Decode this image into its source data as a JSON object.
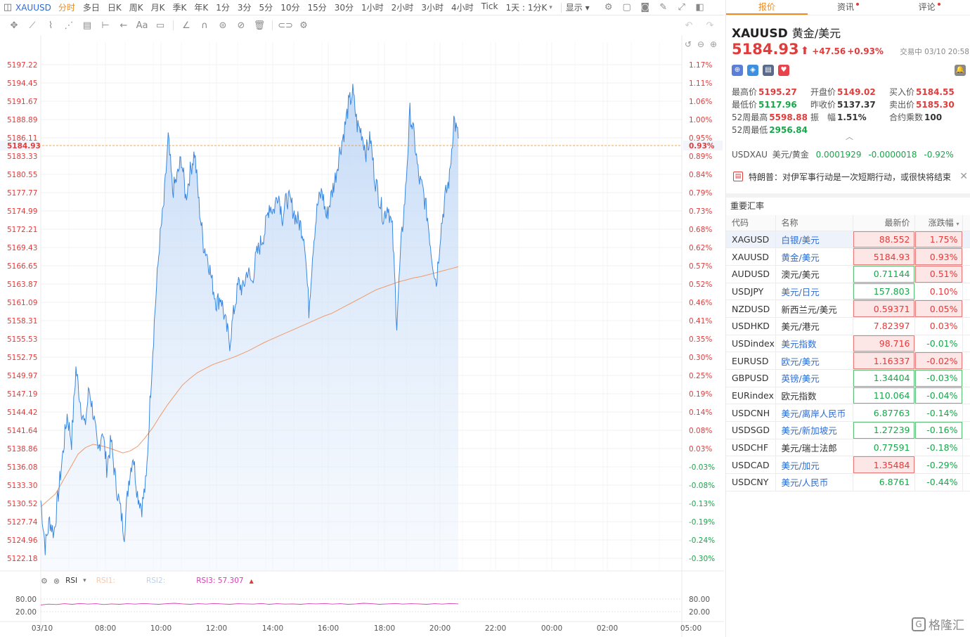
{
  "toolbar": {
    "symbol": "XAUUSD",
    "timeframes": [
      "分时",
      "多日",
      "日K",
      "周K",
      "月K",
      "季K",
      "年K",
      "1分",
      "3分",
      "5分",
      "10分",
      "15分",
      "30分",
      "1小时",
      "2小时",
      "3小时",
      "4小时",
      "Tick",
      "1天 : 1分K"
    ],
    "active_timeframe": "分时",
    "display_label": "显示"
  },
  "chart_data": {
    "type": "line",
    "title": "",
    "current_price_label": "5184.93",
    "current_pct_label": "0.93%",
    "y_tick_labels": [
      "5197.22",
      "5194.45",
      "5191.67",
      "5188.89",
      "5186.11",
      "5183.33",
      "5180.55",
      "5177.77",
      "5174.99",
      "5172.21",
      "5169.43",
      "5166.65",
      "5163.87",
      "5161.09",
      "5158.31",
      "5155.53",
      "5152.75",
      "5149.97",
      "5147.19",
      "5144.42",
      "5141.64",
      "5138.86",
      "5136.08",
      "5133.30",
      "5130.52",
      "5127.74",
      "5124.96",
      "5122.18"
    ],
    "pct_tick_labels": [
      "1.17%",
      "1.11%",
      "1.06%",
      "1.00%",
      "0.95%",
      "0.89%",
      "0.84%",
      "0.79%",
      "0.73%",
      "0.68%",
      "0.62%",
      "0.57%",
      "0.52%",
      "0.46%",
      "0.41%",
      "0.35%",
      "0.30%",
      "0.25%",
      "0.19%",
      "0.14%",
      "0.08%",
      "0.03%",
      "-0.03%",
      "-0.08%",
      "-0.13%",
      "-0.19%",
      "-0.24%",
      "-0.30%"
    ],
    "ylim": [
      5122.18,
      5197.22
    ],
    "x_tick_labels": [
      "03/10",
      "08:00",
      "10:00",
      "12:00",
      "14:00",
      "16:00",
      "18:00",
      "20:00",
      "22:00",
      "00:00",
      "02:00",
      "05:00"
    ],
    "series": [
      {
        "values": [
          5131,
          5124,
          5128,
          5126,
          5132,
          5138,
          5144,
          5140,
          5151,
          5146,
          5142,
          5148,
          5144,
          5138,
          5142,
          5136,
          5140,
          5134,
          5130,
          5126,
          5134,
          5138,
          5132,
          5130,
          5134,
          5148,
          5160,
          5170,
          5176,
          5186,
          5178,
          5180,
          5183,
          5177,
          5181,
          5184,
          5176,
          5170,
          5168,
          5164,
          5161,
          5162,
          5158,
          5155,
          5160,
          5164,
          5163,
          5166,
          5164,
          5168,
          5170,
          5172,
          5176,
          5175,
          5178,
          5174,
          5177,
          5176,
          5174,
          5173,
          5171,
          5160,
          5170,
          5176,
          5178,
          5174,
          5177,
          5180,
          5184,
          5187,
          5191,
          5193,
          5188,
          5187,
          5184,
          5186,
          5180,
          5177,
          5174,
          5176,
          5172,
          5158,
          5170,
          5178,
          5190,
          5186,
          5180,
          5178,
          5174,
          5168,
          5164,
          5172,
          5177,
          5180,
          5189,
          5186
        ],
        "color": "#3b88e0"
      },
      {
        "values": [
          5130,
          5131,
          5132,
          5134,
          5136,
          5138,
          5139,
          5139.5,
          5139.3,
          5139,
          5138.6,
          5138.2,
          5138.5,
          5139.2,
          5140.5,
          5142,
          5143.8,
          5145.5,
          5147,
          5148.5,
          5149.5,
          5150.4,
          5151,
          5151.6,
          5152,
          5152.4,
          5152.8,
          5153.3,
          5153.8,
          5154.4,
          5155,
          5155.5,
          5156,
          5156.5,
          5157,
          5157.5,
          5158,
          5158.5,
          5159,
          5159.4,
          5160,
          5160.6,
          5161.2,
          5161.8,
          5162.4,
          5163,
          5163.4,
          5163.8,
          5164.2,
          5164.5,
          5164.8,
          5165,
          5165.3,
          5165.6,
          5165.9,
          5166.2,
          5166.5
        ],
        "color": "#f09a6a"
      }
    ]
  },
  "rsi": {
    "label": "RSI",
    "rsi1": "RSI1:",
    "rsi2": "RSI2:",
    "rsi3": "RSI3: 57.307",
    "levels": [
      "80.00",
      "20.00"
    ],
    "values": [
      52,
      56,
      54,
      58,
      55,
      59,
      56,
      58,
      54,
      57,
      55,
      58,
      56,
      59,
      57,
      55,
      58,
      60,
      57,
      55,
      58,
      56,
      59,
      57,
      55,
      58,
      57,
      56,
      59,
      55,
      58,
      56,
      57,
      55,
      58,
      57,
      59,
      56,
      58,
      55,
      57,
      60,
      58,
      55,
      57,
      59,
      56,
      58,
      57,
      55,
      58,
      56,
      59,
      57
    ]
  },
  "panel": {
    "tabs": [
      {
        "label": "报价",
        "dot": false
      },
      {
        "label": "资讯",
        "dot": true
      },
      {
        "label": "评论",
        "dot": true
      }
    ],
    "symbol": "XAUUSD",
    "symbol_cn": "黄金/美元",
    "price": "5184.93",
    "change": "+47.56",
    "change_pct": "+0.93%",
    "status": "交易中 03/10 20:58",
    "stats": [
      [
        {
          "label": "最高价",
          "value": "5195.27",
          "color": "red"
        },
        {
          "label": "开盘价",
          "value": "5149.02",
          "color": "red"
        },
        {
          "label": "买入价",
          "value": "5184.55",
          "color": "red"
        }
      ],
      [
        {
          "label": "最低价",
          "value": "5117.96",
          "color": "green"
        },
        {
          "label": "昨收价",
          "value": "5137.37",
          "color": "dark"
        },
        {
          "label": "卖出价",
          "value": "5185.30",
          "color": "red"
        }
      ],
      [
        {
          "label": "52周最高",
          "value": "5598.88",
          "color": "red"
        },
        {
          "label": "振　幅",
          "value": "1.51%",
          "color": "dark"
        },
        {
          "label": "合约乘数",
          "value": "100",
          "color": "dark"
        }
      ],
      [
        {
          "label": "52周最低",
          "value": "2956.84",
          "color": "green"
        }
      ]
    ],
    "usdxau": {
      "code": "USDXAU",
      "name": "美元/黄金",
      "price": "0.0001929",
      "change": "-0.0000018",
      "pct": "-0.92%"
    },
    "news": "特朗普：对伊军事行动是一次短期行动，或很快将结束",
    "section_title": "重要汇率",
    "table_headers": [
      "代码",
      "名称",
      "最新价",
      "涨跌幅"
    ],
    "rates": [
      {
        "code": "XAGUSD",
        "name": "白银/美元",
        "price": "88.552",
        "pct": "1.75%",
        "dir": "up",
        "box": true,
        "link": true,
        "sel": true
      },
      {
        "code": "XAUUSD",
        "name": "黄金/美元",
        "price": "5184.93",
        "pct": "0.93%",
        "dir": "up",
        "box": true,
        "link": true
      },
      {
        "code": "AUDUSD",
        "name": "澳元/美元",
        "price": "0.71144",
        "pct": "0.51%",
        "dir": "up",
        "box": true,
        "pricebox": "green"
      },
      {
        "code": "USDJPY",
        "name": "美元/日元",
        "price": "157.803",
        "pct": "0.10%",
        "dir": "up",
        "pricebox": "green",
        "link": true
      },
      {
        "code": "NZDUSD",
        "name": "新西兰元/美元",
        "price": "0.59371",
        "pct": "0.05%",
        "dir": "up",
        "box": true
      },
      {
        "code": "USDHKD",
        "name": "美元/港元",
        "price": "7.82397",
        "pct": "0.03%",
        "dir": "up"
      },
      {
        "code": "USDindex",
        "name": "美元指数",
        "price": "98.716",
        "pct": "-0.01%",
        "dir": "down",
        "pricebox": "red",
        "link": true
      },
      {
        "code": "EURUSD",
        "name": "欧元/美元",
        "price": "1.16337",
        "pct": "-0.02%",
        "dir": "down",
        "pricebox": "red",
        "pctbox": "red",
        "link": true
      },
      {
        "code": "GBPUSD",
        "name": "英镑/美元",
        "price": "1.34404",
        "pct": "-0.03%",
        "dir": "down",
        "pricebox": "green",
        "pctbox": "green",
        "link": true
      },
      {
        "code": "EURindex",
        "name": "欧元指数",
        "price": "110.064",
        "pct": "-0.04%",
        "dir": "down",
        "pricebox": "green",
        "pctbox": "green"
      },
      {
        "code": "USDCNH",
        "name": "美元/离岸人民币",
        "price": "6.87763",
        "pct": "-0.14%",
        "dir": "down",
        "link": true
      },
      {
        "code": "USDSGD",
        "name": "美元/新加坡元",
        "price": "1.27239",
        "pct": "-0.16%",
        "dir": "down",
        "pricebox": "green",
        "pctbox": "green",
        "link": true
      },
      {
        "code": "USDCHF",
        "name": "美元/瑞士法郎",
        "price": "0.77591",
        "pct": "-0.18%",
        "dir": "down"
      },
      {
        "code": "USDCAD",
        "name": "美元/加元",
        "price": "1.35484",
        "pct": "-0.29%",
        "dir": "down",
        "pricebox": "red",
        "link": true
      },
      {
        "code": "USDCNY",
        "name": "美元/人民币",
        "price": "6.8761",
        "pct": "-0.44%",
        "dir": "down",
        "link": true
      }
    ],
    "logo_text": "格隆汇"
  },
  "colors": {
    "up": "#e03c3c",
    "down": "#18a64a",
    "accent": "#f08a1d",
    "link": "#2d6bd3"
  }
}
